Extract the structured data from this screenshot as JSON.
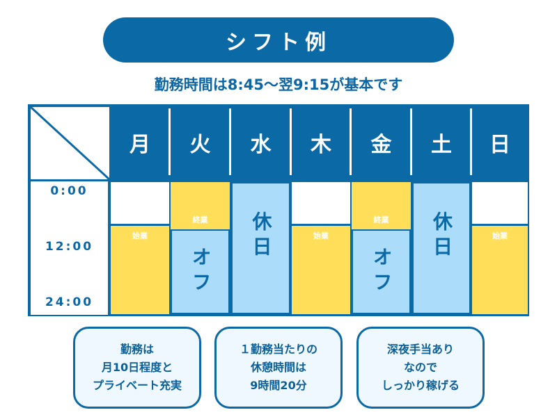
{
  "title": "シフト例",
  "subtitle": "勤務時間は8:45〜翌9:15が基本です",
  "times": [
    "0:00",
    "12:00",
    "24:00"
  ],
  "days": [
    {
      "label": "月",
      "type": "start",
      "text": "始業"
    },
    {
      "label": "火",
      "type": "end-off",
      "text": "終業",
      "off": "オフ"
    },
    {
      "label": "水",
      "type": "holiday",
      "off": "休日"
    },
    {
      "label": "木",
      "type": "start",
      "text": "始業"
    },
    {
      "label": "金",
      "type": "end-off",
      "text": "終業",
      "off": "オフ"
    },
    {
      "label": "土",
      "type": "holiday",
      "off": "休日"
    },
    {
      "label": "日",
      "type": "start",
      "text": "始業"
    }
  ],
  "notes": [
    [
      "勤務は",
      "月10日程度と",
      "プライベート充実"
    ],
    [
      "１勤務当たりの",
      "休憩時間は",
      "9時間20分"
    ],
    [
      "深夜手当あり",
      "なので",
      "しっかり稼げる"
    ]
  ],
  "colors": {
    "primary": "#0b69a6",
    "work": "#ffdf5a",
    "off": "#abdcf9"
  }
}
